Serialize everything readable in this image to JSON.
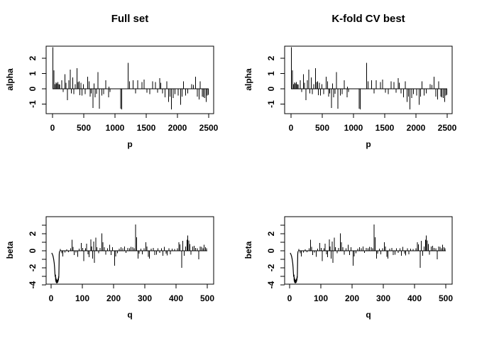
{
  "page": {
    "background": "#ffffff",
    "foreground": "#000000"
  },
  "panels": [
    {
      "id": "top-left",
      "title": "Full set",
      "xlabel": "p",
      "ylabel": "alpha",
      "series": "alpha"
    },
    {
      "id": "top-right",
      "title": "K-fold CV best",
      "xlabel": "p",
      "ylabel": "alpha",
      "series": "alpha"
    },
    {
      "id": "bottom-left",
      "title": "",
      "xlabel": "q",
      "ylabel": "beta",
      "series": "beta"
    },
    {
      "id": "bottom-right",
      "title": "",
      "xlabel": "q",
      "ylabel": "beta",
      "series": "beta"
    }
  ],
  "chart_data": {
    "note": "2x2 R-style figure; left column (Full set) and right column (K-fold CV best) show identical series. Spikes drawn as vertical lines from 0 (R plot type='h').",
    "alpha": {
      "type": "bar",
      "title_left": "Full set",
      "title_right": "K-fold CV best",
      "xlabel": "p",
      "ylabel": "alpha",
      "xlim": [
        0,
        2500
      ],
      "ylim": [
        -1.6,
        2.8
      ],
      "xticks": [
        0,
        500,
        1000,
        1500,
        2000,
        2500
      ],
      "yticks": [
        -1,
        0,
        1,
        2
      ],
      "yticks_labeled": [
        -1,
        0,
        1,
        2
      ],
      "baseline_range": [
        0,
        2500
      ],
      "spikes": [
        [
          3,
          2.72
        ],
        [
          25,
          1.22
        ],
        [
          40,
          0.3
        ],
        [
          55,
          0.42
        ],
        [
          70,
          0.35
        ],
        [
          85,
          0.45
        ],
        [
          100,
          0.3
        ],
        [
          115,
          0.28
        ],
        [
          150,
          0.55
        ],
        [
          170,
          -0.22
        ],
        [
          200,
          0.95
        ],
        [
          215,
          0.4
        ],
        [
          240,
          -0.75
        ],
        [
          262,
          0.55
        ],
        [
          285,
          1.25
        ],
        [
          302,
          -0.3
        ],
        [
          322,
          0.75
        ],
        [
          342,
          -0.35
        ],
        [
          362,
          0.3
        ],
        [
          390,
          1.35
        ],
        [
          410,
          0.45
        ],
        [
          425,
          0.5
        ],
        [
          440,
          -0.42
        ],
        [
          455,
          0.4
        ],
        [
          470,
          -0.45
        ],
        [
          492,
          0.3
        ],
        [
          520,
          -0.35
        ],
        [
          560,
          0.78
        ],
        [
          585,
          0.5
        ],
        [
          602,
          -0.5
        ],
        [
          618,
          -0.3
        ],
        [
          645,
          -1.25
        ],
        [
          662,
          0.35
        ],
        [
          680,
          -0.55
        ],
        [
          702,
          -0.32
        ],
        [
          730,
          1.1
        ],
        [
          748,
          -1.3
        ],
        [
          790,
          -0.45
        ],
        [
          820,
          -0.35
        ],
        [
          852,
          0.55
        ],
        [
          895,
          -0.55
        ],
        [
          905,
          0.15
        ],
        [
          918,
          -0.2
        ],
        [
          1090,
          -1.3
        ],
        [
          1110,
          -1.35
        ],
        [
          1208,
          1.7
        ],
        [
          1232,
          0.5
        ],
        [
          1290,
          0.55
        ],
        [
          1330,
          -0.3
        ],
        [
          1362,
          0.55
        ],
        [
          1430,
          0.45
        ],
        [
          1465,
          0.6
        ],
        [
          1510,
          -0.25
        ],
        [
          1555,
          -0.35
        ],
        [
          1602,
          0.5
        ],
        [
          1645,
          0.45
        ],
        [
          1682,
          -0.25
        ],
        [
          1715,
          0.7
        ],
        [
          1732,
          0.4
        ],
        [
          1762,
          -0.3
        ],
        [
          1800,
          -0.55
        ],
        [
          1830,
          0.5
        ],
        [
          1856,
          -0.85
        ],
        [
          1880,
          -0.5
        ],
        [
          1905,
          -1.35
        ],
        [
          1932,
          -0.6
        ],
        [
          1960,
          -0.35
        ],
        [
          2010,
          -0.45
        ],
        [
          2050,
          -1.05
        ],
        [
          2072,
          -0.5
        ],
        [
          2095,
          0.5
        ],
        [
          2130,
          -0.45
        ],
        [
          2162,
          -0.3
        ],
        [
          2230,
          0.3
        ],
        [
          2256,
          0.25
        ],
        [
          2290,
          0.8
        ],
        [
          2320,
          -0.5
        ],
        [
          2345,
          -0.7
        ],
        [
          2366,
          0.5
        ],
        [
          2395,
          -0.5
        ],
        [
          2415,
          -0.55
        ],
        [
          2440,
          -0.6
        ],
        [
          2462,
          -0.85
        ],
        [
          2480,
          -0.45
        ],
        [
          2496,
          -0.4
        ]
      ]
    },
    "beta": {
      "type": "bar",
      "xlabel": "q",
      "ylabel": "beta",
      "xlim": [
        0,
        500
      ],
      "ylim": [
        -4,
        3.4
      ],
      "xticks": [
        0,
        100,
        200,
        300,
        400,
        500
      ],
      "yticks": [
        3,
        2,
        1,
        0,
        -1,
        -2,
        -3,
        -4
      ],
      "yticks_labeled": [
        2,
        0,
        -2,
        -4
      ],
      "baseline_range": [
        27,
        500
      ],
      "lead_in_line": [
        [
          2,
          -0.25
        ],
        [
          4,
          -0.4
        ],
        [
          6,
          -0.6
        ],
        [
          8,
          -0.95
        ],
        [
          10,
          -1.45
        ],
        [
          11,
          -1.9
        ],
        [
          12,
          -2.5
        ],
        [
          13,
          -3.05
        ],
        [
          14,
          -2.8
        ],
        [
          14.5,
          -3.5
        ],
        [
          15,
          -3.1
        ],
        [
          15.5,
          -3.65
        ],
        [
          16,
          -3.25
        ],
        [
          16.5,
          -3.75
        ],
        [
          17,
          -3.35
        ],
        [
          17.5,
          -3.8
        ],
        [
          18,
          -3.4
        ],
        [
          18.5,
          -3.75
        ],
        [
          19,
          -3.45
        ],
        [
          19.5,
          -3.8
        ],
        [
          20,
          -3.5
        ],
        [
          20.5,
          -3.75
        ],
        [
          21,
          -3.4
        ],
        [
          21.5,
          -3.7
        ],
        [
          22,
          -3.3
        ],
        [
          22.5,
          -3.6
        ],
        [
          23,
          -3.2
        ],
        [
          23.5,
          -3.45
        ],
        [
          24,
          -3.0
        ],
        [
          24.5,
          -3.2
        ],
        [
          25,
          -2.6
        ],
        [
          25.5,
          -1.5
        ],
        [
          26,
          -0.4
        ],
        [
          27,
          -0.05
        ]
      ],
      "spikes": [
        [
          30,
          0.2
        ],
        [
          34,
          -0.3
        ],
        [
          38,
          -0.65
        ],
        [
          44,
          -0.2
        ],
        [
          50,
          0.15
        ],
        [
          56,
          -0.15
        ],
        [
          62,
          0.3
        ],
        [
          67,
          1.3
        ],
        [
          70,
          0.45
        ],
        [
          74,
          -0.5
        ],
        [
          80,
          -0.2
        ],
        [
          85,
          -0.7
        ],
        [
          90,
          0.25
        ],
        [
          97,
          0.9
        ],
        [
          101,
          0.35
        ],
        [
          105,
          -1.2
        ],
        [
          110,
          0.3
        ],
        [
          114,
          0.85
        ],
        [
          118,
          -0.4
        ],
        [
          122,
          -0.75
        ],
        [
          127,
          1.35
        ],
        [
          130,
          0.5
        ],
        [
          133,
          -0.9
        ],
        [
          136,
          1.1
        ],
        [
          139,
          -1.4
        ],
        [
          143,
          1.55
        ],
        [
          147,
          0.4
        ],
        [
          152,
          -0.3
        ],
        [
          157,
          0.35
        ],
        [
          162,
          2.05
        ],
        [
          166,
          1.0
        ],
        [
          170,
          0.4
        ],
        [
          175,
          -0.45
        ],
        [
          181,
          0.3
        ],
        [
          187,
          0.7
        ],
        [
          192,
          -0.5
        ],
        [
          197,
          0.4
        ],
        [
          203,
          -1.75
        ],
        [
          207,
          -0.65
        ],
        [
          212,
          -0.3
        ],
        [
          218,
          0.25
        ],
        [
          224,
          0.4
        ],
        [
          230,
          0.3
        ],
        [
          235,
          0.5
        ],
        [
          240,
          -0.25
        ],
        [
          245,
          0.35
        ],
        [
          251,
          0.3
        ],
        [
          256,
          0.45
        ],
        [
          261,
          0.4
        ],
        [
          266,
          0.3
        ],
        [
          270,
          3.1
        ],
        [
          274,
          1.6
        ],
        [
          278,
          -0.9
        ],
        [
          282,
          -0.35
        ],
        [
          287,
          0.25
        ],
        [
          292,
          -0.4
        ],
        [
          298,
          0.3
        ],
        [
          303,
          1.0
        ],
        [
          307,
          0.5
        ],
        [
          311,
          -0.7
        ],
        [
          315,
          -0.9
        ],
        [
          321,
          0.25
        ],
        [
          327,
          0.35
        ],
        [
          332,
          -0.5
        ],
        [
          337,
          -0.45
        ],
        [
          342,
          0.3
        ],
        [
          348,
          -0.25
        ],
        [
          353,
          0.3
        ],
        [
          358,
          -0.6
        ],
        [
          363,
          0.45
        ],
        [
          368,
          -0.35
        ],
        [
          372,
          -0.55
        ],
        [
          377,
          0.3
        ],
        [
          382,
          -0.4
        ],
        [
          387,
          0.25
        ],
        [
          395,
          0.2
        ],
        [
          405,
          0.3
        ],
        [
          409,
          1.0
        ],
        [
          413,
          0.75
        ],
        [
          418,
          -2.0
        ],
        [
          422,
          1.15
        ],
        [
          426,
          -0.6
        ],
        [
          431,
          0.5
        ],
        [
          435,
          1.3
        ],
        [
          438,
          1.8
        ],
        [
          441,
          1.2
        ],
        [
          444,
          0.8
        ],
        [
          448,
          -0.45
        ],
        [
          453,
          0.5
        ],
        [
          458,
          0.6
        ],
        [
          463,
          0.35
        ],
        [
          468,
          0.3
        ],
        [
          473,
          -1.0
        ],
        [
          477,
          0.5
        ],
        [
          482,
          0.45
        ],
        [
          486,
          0.3
        ],
        [
          490,
          0.7
        ],
        [
          494,
          0.4
        ],
        [
          498,
          0.3
        ]
      ]
    }
  }
}
